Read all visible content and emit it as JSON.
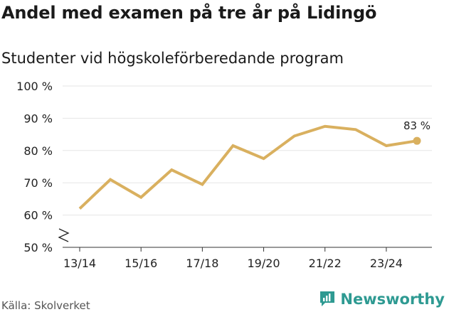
{
  "header": {
    "title": "Andel med examen på tre år på Lidingö",
    "subtitle": "Studenter vid högskoleförberedande program"
  },
  "footer": {
    "source": "Källa: Skolverket",
    "brand": "Newsworthy"
  },
  "colors": {
    "line": "#d9b05f",
    "grid": "#e6e6e6",
    "brand": "#2e9a92"
  },
  "chart_data": {
    "type": "line",
    "title": "Andel med examen på tre år på Lidingö",
    "subtitle": "Studenter vid högskoleförberedande program",
    "xlabel": "",
    "ylabel": "",
    "x": [
      "13/14",
      "14/15",
      "15/16",
      "16/17",
      "17/18",
      "18/19",
      "19/20",
      "20/21",
      "21/22",
      "22/23",
      "23/24",
      "24/25"
    ],
    "tick_labels": [
      "13/14",
      "15/16",
      "17/18",
      "19/20",
      "21/22",
      "23/24"
    ],
    "series": [
      {
        "name": "Andel med examen",
        "values": [
          62,
          71,
          65.5,
          74,
          69.5,
          81.5,
          77.5,
          84.5,
          87.5,
          86.5,
          81.5,
          83
        ]
      }
    ],
    "ylim": [
      50,
      100
    ],
    "yticks": [
      {
        "value": 50,
        "label": "50 %"
      },
      {
        "value": 60,
        "label": "60 %"
      },
      {
        "value": 70,
        "label": "70 %"
      },
      {
        "value": 80,
        "label": "80 %"
      },
      {
        "value": 90,
        "label": "90 %"
      },
      {
        "value": 100,
        "label": "100 %"
      }
    ],
    "axis_break": true,
    "grid": true,
    "end_label": "83 %"
  }
}
